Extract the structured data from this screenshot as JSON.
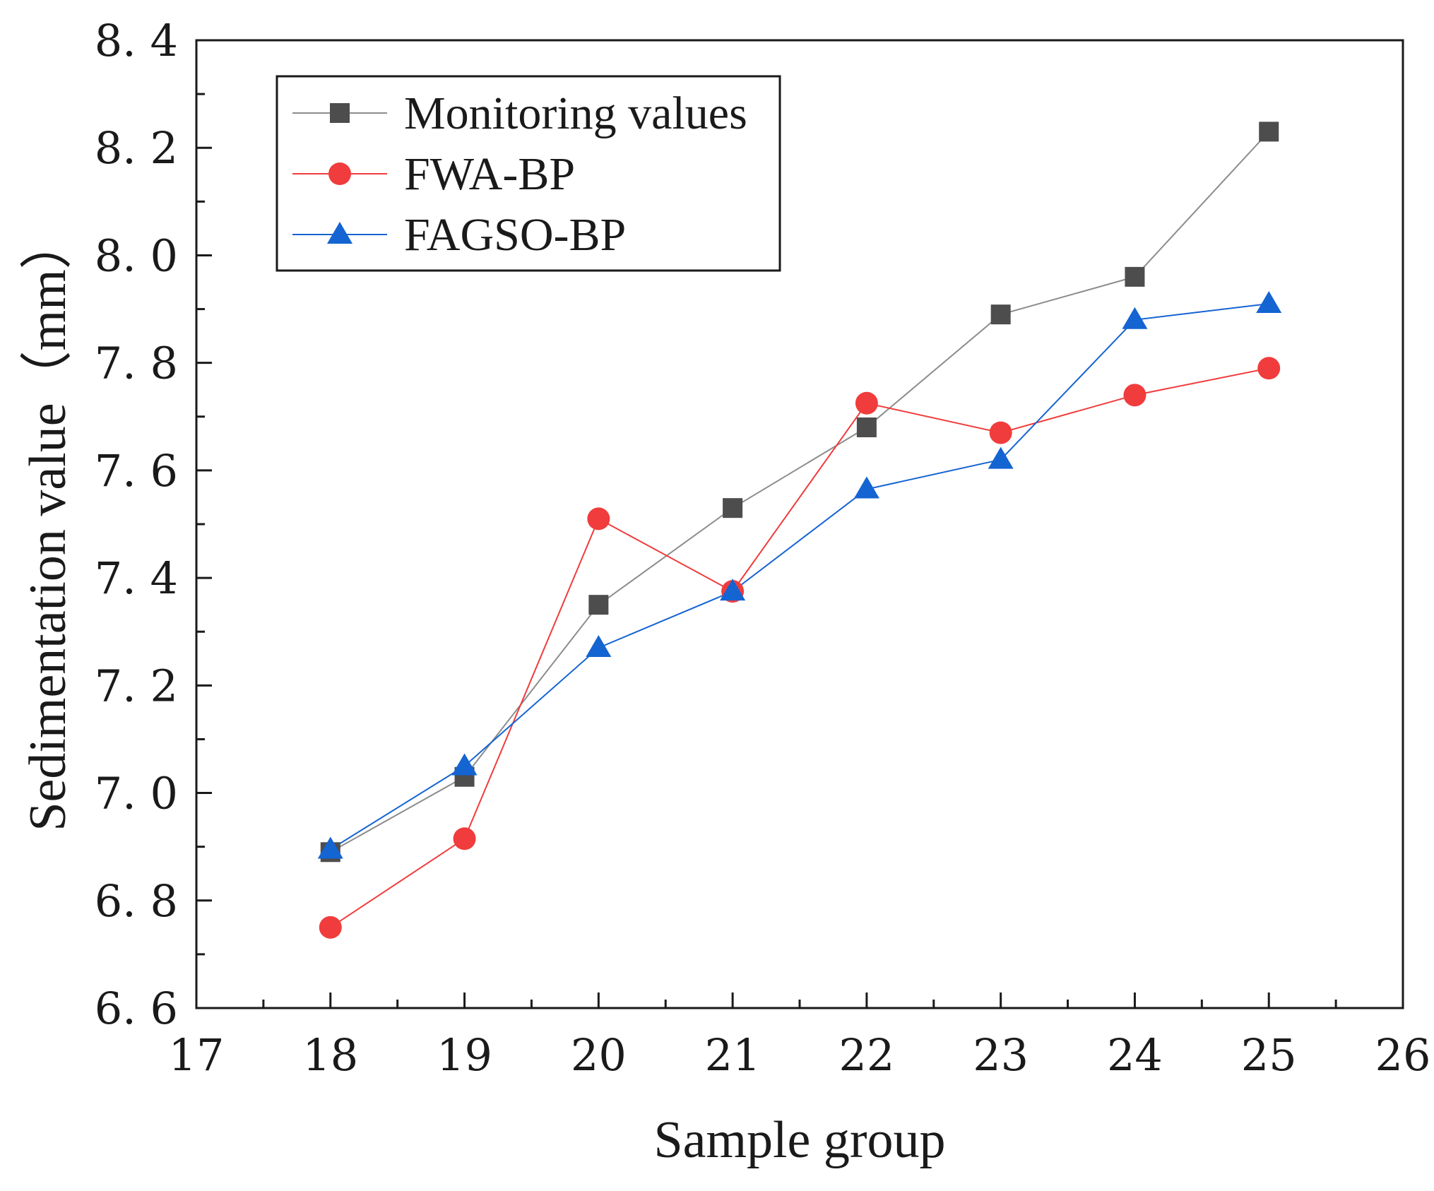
{
  "chart_data": {
    "type": "line",
    "title": "",
    "xlabel": "Sample group",
    "ylabel": "Sedimentation value（mm）",
    "xlim": [
      17,
      26
    ],
    "ylim": [
      6.6,
      8.4
    ],
    "x_ticks": [
      "17",
      "18",
      "19",
      "20",
      "21",
      "22",
      "23",
      "24",
      "25",
      "26"
    ],
    "y_ticks": [
      "6. 6",
      "6. 8",
      "7. 0",
      "7. 2",
      "7. 4",
      "7. 6",
      "7. 8",
      "8. 0",
      "8. 2",
      "8. 4"
    ],
    "x_tick_values": [
      17,
      18,
      19,
      20,
      21,
      22,
      23,
      24,
      25,
      26
    ],
    "y_tick_values": [
      6.6,
      6.8,
      7.0,
      7.2,
      7.4,
      7.6,
      7.8,
      8.0,
      8.2,
      8.4
    ],
    "grid": false,
    "legend_position": "top-left",
    "x": [
      18,
      19,
      20,
      21,
      22,
      23,
      24,
      25
    ],
    "series": [
      {
        "name": "Monitoring values",
        "values": [
          6.89,
          7.03,
          7.35,
          7.53,
          7.68,
          7.89,
          7.96,
          8.23
        ],
        "color": "#4d4d4d",
        "line_color": "#8c8c8c",
        "marker": "square"
      },
      {
        "name": "FWA-BP",
        "values": [
          6.75,
          6.915,
          7.51,
          7.375,
          7.725,
          7.67,
          7.74,
          7.79
        ],
        "color": "#f03c3c",
        "line_color": "#f03c3c",
        "marker": "circle"
      },
      {
        "name": "FAGSO-BP",
        "values": [
          6.895,
          7.05,
          7.27,
          7.375,
          7.565,
          7.62,
          7.88,
          7.91
        ],
        "color": "#1464d2",
        "line_color": "#1464d2",
        "marker": "triangle"
      }
    ]
  }
}
